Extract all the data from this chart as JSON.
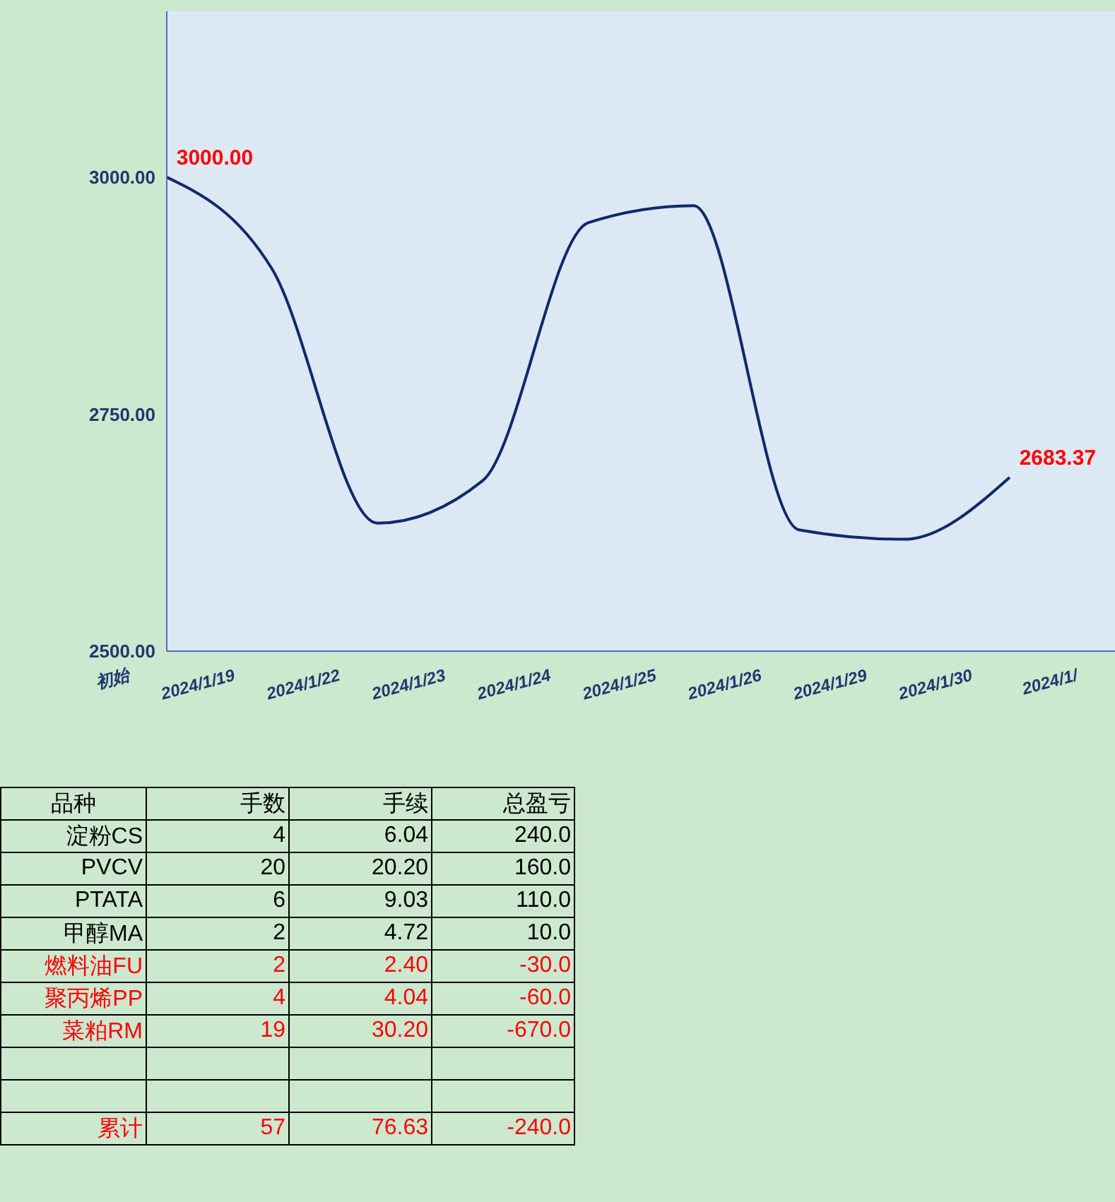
{
  "chart_data": [
    {
      "type": "line",
      "categories": [
        "初始",
        "2024/1/19",
        "2024/1/22",
        "2024/1/23",
        "2024/1/24",
        "2024/1/25",
        "2024/1/26",
        "2024/1/29",
        "2024/1/30",
        "2024/1/"
      ],
      "series": [
        {
          "color": "#0d2a6b",
          "values": [
            3000,
            2903,
            2635,
            2680,
            2952,
            2970,
            2628,
            2618,
            2683.37,
            null
          ],
          "value_labels": [
            "3000.00",
            null,
            null,
            null,
            null,
            null,
            null,
            null,
            "2683.37",
            null
          ]
        }
      ],
      "ylim": [
        2500,
        3175
      ],
      "yticks": [
        {
          "value": 2500,
          "label": "2500.00"
        },
        {
          "value": 2750,
          "label": "2750.00"
        },
        {
          "value": 3000,
          "label": "3000.00"
        }
      ],
      "marker": "none"
    },
    {
      "type": "other",
      "categories": [
        "品种",
        "手数",
        "手续",
        "总盈亏"
      ],
      "y_categories": [
        "淀粉CS",
        "PVCV",
        "PTATA",
        "甲醇MA",
        "燃料油FU",
        "聚丙烯PP",
        "菜粕RM",
        null,
        null,
        "累计"
      ],
      "cell_labels": [
        [
          "4",
          "6.04",
          "240.0"
        ],
        [
          "20",
          "20.20",
          "160.0"
        ],
        [
          "6",
          "9.03",
          "110.0"
        ],
        [
          "2",
          "4.72",
          "10.0"
        ],
        [
          "2",
          "2.40",
          "-30.0"
        ],
        [
          "4",
          "4.04",
          "-60.0"
        ],
        [
          "19",
          "30.20",
          "-670.0"
        ],
        [
          null,
          null,
          null
        ],
        [
          null,
          null,
          null
        ],
        [
          "57",
          "76.63",
          "-240.0"
        ]
      ],
      "colors": [
        "#000000",
        "#000000",
        "#000000",
        "#000000",
        "#ff0000",
        "#ff0000",
        "#ff0000",
        "#000000",
        "#000000",
        "#ff0000"
      ]
    }
  ]
}
